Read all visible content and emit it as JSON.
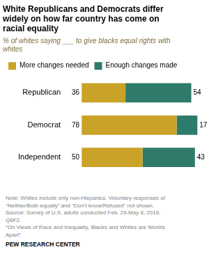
{
  "chart_data": {
    "type": "bar",
    "orientation": "horizontal",
    "stacked": true,
    "title": "White Republicans and Democrats differ\nwidely on how far country has come on\nracial equality",
    "subtitle": "% of whites saying ___ to give blacks equal rights with\nwhites",
    "categories": [
      "Republican",
      "Democrat",
      "Independent"
    ],
    "series": [
      {
        "name": "More changes needed",
        "color": "#C9A227",
        "values": [
          36,
          78,
          50
        ]
      },
      {
        "name": "Enough changes made",
        "color": "#2E7B6B",
        "values": [
          54,
          17,
          43
        ]
      }
    ],
    "xlim": [
      0,
      100
    ],
    "tick_labels": "y",
    "grid": false,
    "legend": "top left",
    "data_labels": true,
    "annotations": [
      "Note: Whites include only non-Hispanics. Voluntary responses of\n“Neither/Both equally” and “Don’t know/Refused” not shown.\nSource: Survey of U.S. adults conducted Feb. 29-May 8, 2016.\nQ6F2.\n“On Views of Race and Inequality, Blacks and Whites are Worlds\nApart”",
      "PEW RESEARCH CENTER"
    ]
  }
}
